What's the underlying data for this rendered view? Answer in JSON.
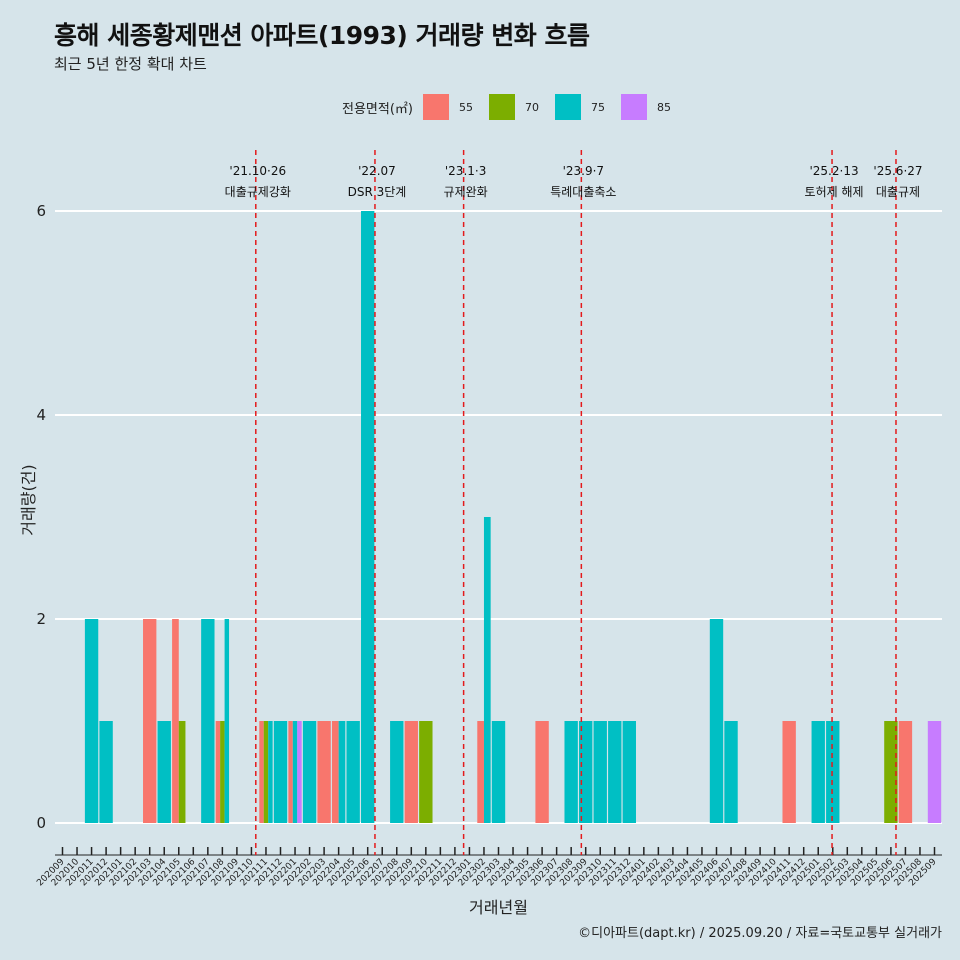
{
  "title": "흥해 세종황제맨션 아파트(1993) 거래량 변화 흐름",
  "subtitle": "최근 5년 한정 확대 차트",
  "caption": "©디아파트(dapt.kr) / 2025.09.20 / 자료=국토교통부 실거래가",
  "legend": {
    "title": "전용면적(㎡)",
    "items": [
      {
        "label": "55",
        "color": "#f8766d"
      },
      {
        "label": "70",
        "color": "#7cae00"
      },
      {
        "label": "75",
        "color": "#00bfc4"
      },
      {
        "label": "85",
        "color": "#c77cff"
      }
    ]
  },
  "chart_data": {
    "type": "bar",
    "stacked": false,
    "xlabel": "거래년월",
    "ylabel": "거래량(건)",
    "ylim": [
      0,
      6
    ],
    "yticks": [
      0,
      2,
      4,
      6
    ],
    "grid": "horizontal",
    "categories": [
      "202009",
      "202010",
      "202011",
      "202012",
      "202101",
      "202102",
      "202103",
      "202104",
      "202105",
      "202106",
      "202107",
      "202108",
      "202109",
      "202110",
      "202111",
      "202112",
      "202201",
      "202202",
      "202203",
      "202204",
      "202205",
      "202206",
      "202207",
      "202208",
      "202209",
      "202210",
      "202211",
      "202212",
      "202301",
      "202302",
      "202303",
      "202304",
      "202305",
      "202306",
      "202307",
      "202308",
      "202309",
      "202310",
      "202311",
      "202312",
      "202401",
      "202402",
      "202403",
      "202404",
      "202405",
      "202406",
      "202407",
      "202408",
      "202409",
      "202410",
      "202411",
      "202412",
      "202501",
      "202502",
      "202503",
      "202504",
      "202505",
      "202506",
      "202507",
      "202508",
      "202509"
    ],
    "series": [
      {
        "name": "55",
        "color": "#f8766d",
        "values": [
          0,
          0,
          0,
          0,
          0,
          0,
          2,
          0,
          2,
          0,
          0,
          1,
          0,
          0,
          1,
          0,
          1,
          0,
          1,
          1,
          0,
          0,
          0,
          0,
          1,
          0,
          0,
          0,
          0,
          1,
          0,
          0,
          0,
          1,
          0,
          0,
          0,
          0,
          0,
          0,
          0,
          0,
          0,
          0,
          0,
          0,
          0,
          0,
          0,
          0,
          1,
          0,
          0,
          0,
          0,
          0,
          0,
          0,
          1,
          0,
          0
        ]
      },
      {
        "name": "70",
        "color": "#7cae00",
        "values": [
          0,
          0,
          0,
          0,
          0,
          0,
          0,
          0,
          1,
          0,
          0,
          1,
          0,
          0,
          1,
          0,
          0,
          0,
          0,
          0,
          0,
          0,
          0,
          0,
          0,
          1,
          0,
          0,
          0,
          0,
          0,
          0,
          0,
          0,
          0,
          0,
          0,
          0,
          0,
          0,
          0,
          0,
          0,
          0,
          0,
          0,
          0,
          0,
          0,
          0,
          0,
          0,
          0,
          0,
          0,
          0,
          0,
          1,
          0,
          0,
          0
        ]
      },
      {
        "name": "75",
        "color": "#00bfc4",
        "values": [
          0,
          0,
          2,
          1,
          0,
          0,
          0,
          1,
          0,
          0,
          2,
          2,
          0,
          0,
          1,
          1,
          1,
          1,
          0,
          1,
          1,
          6,
          0,
          1,
          0,
          0,
          0,
          0,
          0,
          3,
          1,
          0,
          0,
          0,
          0,
          1,
          1,
          1,
          1,
          1,
          0,
          0,
          0,
          0,
          0,
          2,
          1,
          0,
          0,
          0,
          0,
          0,
          1,
          1,
          0,
          0,
          0,
          0,
          0,
          0,
          0
        ]
      },
      {
        "name": "85",
        "color": "#c77cff",
        "values": [
          0,
          0,
          0,
          0,
          0,
          0,
          0,
          0,
          0,
          0,
          0,
          0,
          0,
          0,
          0,
          0,
          1,
          0,
          0,
          0,
          0,
          0,
          0,
          0,
          0,
          0,
          0,
          0,
          0,
          0,
          0,
          0,
          0,
          0,
          0,
          0,
          0,
          0,
          0,
          0,
          0,
          0,
          0,
          0,
          0,
          0,
          0,
          0,
          0,
          0,
          0,
          0,
          0,
          0,
          0,
          0,
          0,
          0,
          0,
          0,
          1
        ]
      }
    ],
    "events": [
      {
        "date_label": "'21.10·26",
        "label": "대출규제강화",
        "month": "202110",
        "day_fraction": 0.8
      },
      {
        "date_label": "'22.07",
        "label": "DSR 3단계",
        "month": "202207",
        "day_fraction": 0.0
      },
      {
        "date_label": "'23.1·3",
        "label": "규제완화",
        "month": "202301",
        "day_fraction": 0.1
      },
      {
        "date_label": "'23.9·7",
        "label": "특례대출축소",
        "month": "202309",
        "day_fraction": 0.2
      },
      {
        "date_label": "'25.2·13",
        "label": "토허제 해제",
        "month": "202502",
        "day_fraction": 0.45
      },
      {
        "date_label": "'25.6·27",
        "label": "대출규제",
        "month": "202506",
        "day_fraction": 0.85
      }
    ]
  }
}
